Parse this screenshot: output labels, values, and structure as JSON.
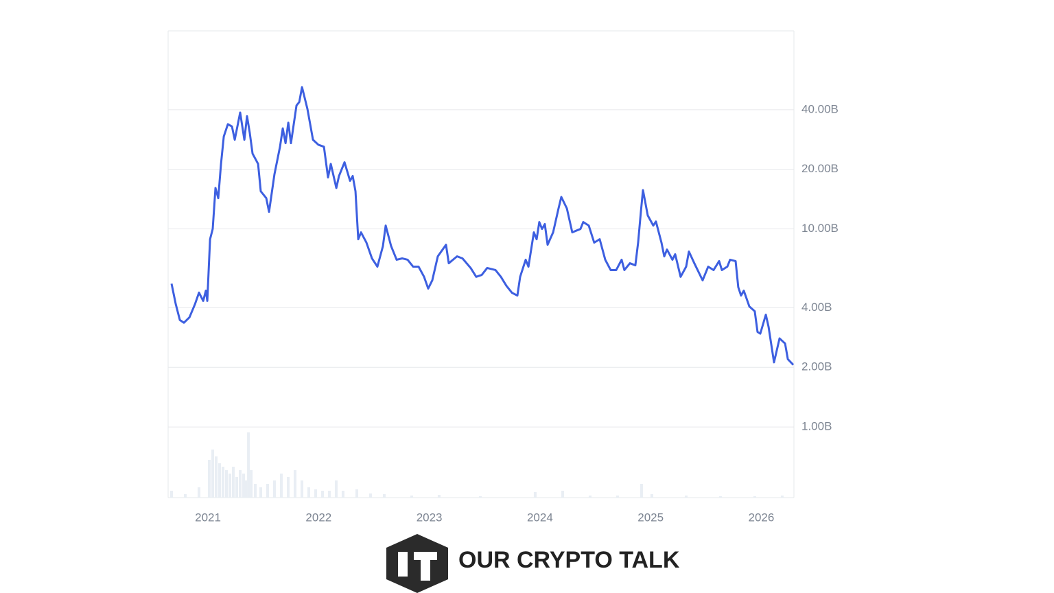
{
  "chart_data": {
    "type": "line",
    "brand": "OUR CRYPTO TALK",
    "log_y": true,
    "grid": true,
    "y_axis_side": "right",
    "xlim": [
      2020.64,
      2026.295
    ],
    "xticks": [
      2021,
      2022,
      2023,
      2024,
      2025,
      2026
    ],
    "ylim": [
      0.44,
      100
    ],
    "yticks": [
      {
        "value": 1,
        "label": "1.00B"
      },
      {
        "value": 2,
        "label": "2.00B"
      },
      {
        "value": 4,
        "label": "4.00B"
      },
      {
        "value": 10,
        "label": "10.00B"
      },
      {
        "value": 20,
        "label": "20.00B"
      },
      {
        "value": 40,
        "label": "40.00B"
      }
    ],
    "color": "#3d5fe0",
    "x": [
      2020.671,
      2020.709,
      2020.746,
      2020.783,
      2020.833,
      2020.882,
      2020.919,
      2020.957,
      2020.981,
      2020.994,
      2021.019,
      2021.043,
      2021.068,
      2021.093,
      2021.118,
      2021.143,
      2021.18,
      2021.217,
      2021.242,
      2021.291,
      2021.329,
      2021.353,
      2021.378,
      2021.403,
      2021.453,
      2021.477,
      2021.527,
      2021.552,
      2021.601,
      2021.651,
      2021.676,
      2021.701,
      2021.726,
      2021.75,
      2021.8,
      2021.825,
      2021.85,
      2021.899,
      2021.949,
      2021.998,
      2022.048,
      2022.085,
      2022.11,
      2022.16,
      2022.184,
      2022.234,
      2022.284,
      2022.308,
      2022.333,
      2022.358,
      2022.383,
      2022.432,
      2022.482,
      2022.531,
      2022.581,
      2022.606,
      2022.655,
      2022.705,
      2022.755,
      2022.804,
      2022.854,
      2022.903,
      2022.953,
      2022.99,
      2023.027,
      2023.077,
      2023.151,
      2023.176,
      2023.251,
      2023.3,
      2023.374,
      2023.424,
      2023.474,
      2023.523,
      2023.598,
      2023.647,
      2023.697,
      2023.747,
      2023.796,
      2023.821,
      2023.871,
      2023.896,
      2023.945,
      2023.97,
      2023.994,
      2024.019,
      2024.044,
      2024.069,
      2024.119,
      2024.168,
      2024.193,
      2024.243,
      2024.292,
      2024.366,
      2024.391,
      2024.441,
      2024.49,
      2024.54,
      2024.59,
      2024.639,
      2024.689,
      2024.738,
      2024.763,
      2024.813,
      2024.862,
      2024.887,
      2024.912,
      2024.931,
      2024.974,
      2025.024,
      2025.048,
      2025.098,
      2025.123,
      2025.148,
      2025.197,
      2025.222,
      2025.271,
      2025.321,
      2025.346,
      2025.395,
      2025.47,
      2025.52,
      2025.569,
      2025.619,
      2025.644,
      2025.693,
      2025.718,
      2025.768,
      2025.792,
      2025.817,
      2025.842,
      2025.892,
      2025.941,
      2025.966,
      2025.991,
      2026.041,
      2026.066,
      2026.115,
      2026.165,
      2026.215,
      2026.24,
      2026.289
    ],
    "values": [
      5.29,
      4.17,
      3.47,
      3.36,
      3.58,
      4.16,
      4.77,
      4.33,
      4.88,
      4.33,
      8.87,
      10,
      16.1,
      14.3,
      21.3,
      29.3,
      33.8,
      32.9,
      28.2,
      38.7,
      28.2,
      37.1,
      30.5,
      24,
      21.3,
      15.5,
      14.3,
      12.2,
      18.9,
      26,
      32.2,
      27.1,
      34.4,
      27.1,
      42,
      43.7,
      52,
      40.3,
      28.2,
      26.6,
      26,
      18.2,
      21.3,
      16.1,
      18.5,
      21.7,
      17.5,
      18.5,
      15.5,
      8.87,
      9.61,
      8.53,
      7.1,
      6.45,
      8.19,
      10.4,
      8.19,
      6.99,
      7.1,
      6.99,
      6.45,
      6.45,
      5.73,
      5,
      5.5,
      7.27,
      8.32,
      6.71,
      7.27,
      7.1,
      6.35,
      5.73,
      5.86,
      6.35,
      6.2,
      5.73,
      5.16,
      4.76,
      4.61,
      5.73,
      6.99,
      6.45,
      9.61,
      8.87,
      10.83,
      10,
      10.58,
      8.32,
      9.61,
      12.7,
      14.5,
      12.7,
      9.61,
      10,
      10.83,
      10.4,
      8.53,
      8.87,
      6.99,
      6.2,
      6.2,
      6.99,
      6.2,
      6.71,
      6.55,
      8.53,
      12.2,
      15.7,
      11.7,
      10.4,
      10.9,
      8.53,
      7.27,
      7.87,
      6.99,
      7.45,
      5.73,
      6.45,
      7.69,
      6.71,
      5.5,
      6.45,
      6.2,
      6.88,
      6.2,
      6.45,
      6.99,
      6.88,
      5.08,
      4.61,
      4.88,
      4.06,
      3.84,
      3.02,
      2.96,
      3.69,
      3.2,
      2.12,
      2.8,
      2.64,
      2.2,
      2.06
    ],
    "volume": {
      "color": "#e9eef4",
      "lim": [
        0,
        100
      ],
      "x": [
        2020.671,
        2020.795,
        2020.919,
        2021.012,
        2021.043,
        2021.074,
        2021.105,
        2021.136,
        2021.167,
        2021.198,
        2021.229,
        2021.26,
        2021.291,
        2021.322,
        2021.341,
        2021.366,
        2021.391,
        2021.428,
        2021.477,
        2021.539,
        2021.601,
        2021.663,
        2021.725,
        2021.787,
        2021.849,
        2021.911,
        2021.973,
        2022.035,
        2022.097,
        2022.159,
        2022.221,
        2022.345,
        2022.469,
        2022.593,
        2022.841,
        2023.089,
        2023.461,
        2023.957,
        2024.205,
        2024.453,
        2024.701,
        2024.918,
        2025.011,
        2025.321,
        2025.631,
        2025.941,
        2026.189
      ],
      "values": [
        10,
        5,
        15,
        55,
        70,
        60,
        50,
        45,
        40,
        35,
        45,
        30,
        40,
        35,
        25,
        95,
        40,
        20,
        15,
        20,
        25,
        35,
        30,
        40,
        25,
        15,
        12,
        10,
        10,
        25,
        10,
        12,
        6,
        5,
        3,
        4,
        2,
        8,
        10,
        3,
        3,
        20,
        5,
        3,
        2,
        2,
        3
      ]
    }
  }
}
